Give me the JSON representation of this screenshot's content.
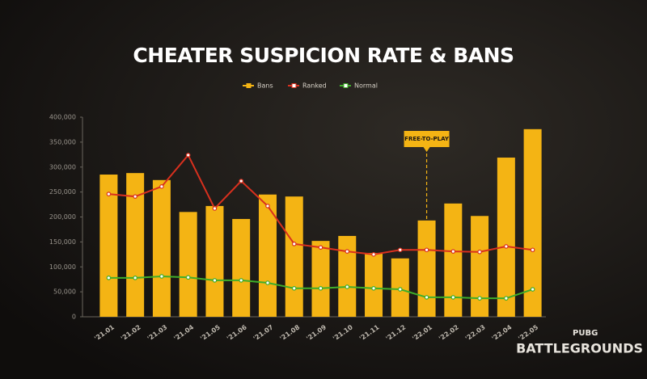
{
  "chart_data": {
    "type": "bar-line",
    "title": "CHEATER SUSPICION RATE & BANS",
    "categories": [
      "'21.01",
      "'21.02",
      "'21.03",
      "'21.04",
      "'21.05",
      "'21.06",
      "'21.07",
      "'21.08",
      "'21.09",
      "'21.10",
      "'21.11",
      "'21.12",
      "'22.01",
      "'22.02",
      "'22.03",
      "'22.04",
      "'22.05"
    ],
    "series": [
      {
        "name": "Bans",
        "type": "bar",
        "color": "#f4b414",
        "values": [
          285000,
          288000,
          274000,
          210000,
          222000,
          196000,
          245000,
          241000,
          152000,
          162000,
          128000,
          117000,
          193000,
          227000,
          202000,
          319000,
          376000
        ]
      },
      {
        "name": "Ranked",
        "type": "line",
        "color": "#d9301e",
        "values": [
          246000,
          241000,
          261000,
          324000,
          217000,
          272000,
          222000,
          146000,
          139000,
          131000,
          125000,
          134000,
          134000,
          131000,
          130000,
          141000,
          134000
        ]
      },
      {
        "name": "Normal",
        "type": "line",
        "color": "#3fae2a",
        "values": [
          78000,
          78000,
          81000,
          79000,
          73000,
          73000,
          68000,
          57000,
          57000,
          60000,
          57000,
          55000,
          39000,
          39000,
          37000,
          37000,
          55000
        ]
      }
    ],
    "ylim": [
      0,
      400000
    ],
    "yticks": [
      0,
      {
        "value": 50000,
        "label": "50,000"
      },
      {
        "value": 100000,
        "label": "100,000"
      },
      {
        "value": 150000,
        "label": "150,000"
      },
      {
        "value": 200000,
        "label": "200,000"
      },
      {
        "value": 250000,
        "label": "250,000"
      },
      {
        "value": 300000,
        "label": "300,000"
      },
      {
        "value": 350000,
        "label": "350,000"
      },
      {
        "value": 400000,
        "label": "400,000"
      }
    ],
    "grid": false,
    "legend": "top",
    "annotation": {
      "text": "FREE-TO-PLAY",
      "at": "'22.01",
      "color": "#f4b414"
    }
  },
  "branding": {
    "small": "PUBG",
    "large": "BATTLEGROUNDS"
  }
}
